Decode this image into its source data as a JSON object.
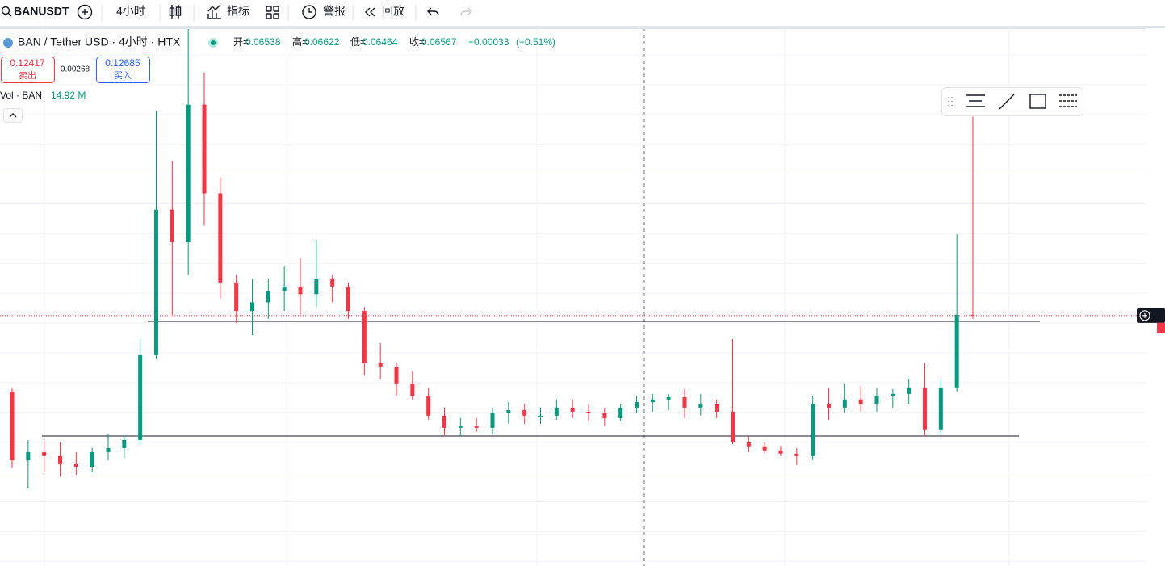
{
  "toolbar": {
    "symbol": "BANUSDT",
    "interval": "4小时",
    "indicators": "指标",
    "alerts": "警报",
    "replay": "回放"
  },
  "legend": {
    "title": "BAN / Tether USD · 4小时 · HTX",
    "open_label": "开=",
    "open": 0.06538,
    "high_label": "高=",
    "high": 0.06622,
    "low_label": "低=",
    "low": 0.06464,
    "close_label": "收=",
    "close": 0.06567,
    "change": "+0.00033",
    "change_pct": "(+0.51%)"
  },
  "trade": {
    "sell_price": 0.12417,
    "sell_label": "卖出",
    "spread": 0.00268,
    "buy_price": 0.12685,
    "buy_label": "买入"
  },
  "volume": {
    "label": "Vol · BAN",
    "value": "14.92 M"
  },
  "chart_data": {
    "type": "candlestick",
    "open": [
      0.0699,
      0.0411,
      0.0438,
      0.0425,
      0.0399,
      0.0391,
      0.0438,
      0.0452,
      0.0481,
      0.0925,
      0.284,
      0.221,
      0.638,
      0.322,
      0.162,
      0.13,
      0.139,
      0.152,
      0.157,
      0.148,
      0.167,
      0.157,
      0.13,
      0.0869,
      0.0842,
      0.0744,
      0.0677,
      0.058,
      0.0528,
      0.0534,
      0.0528,
      0.0591,
      0.0605,
      0.058,
      0.058,
      0.0617,
      0.0598,
      0.0591,
      0.0569,
      0.0617,
      0.0644,
      0.0657,
      0.0669,
      0.0617,
      0.0636,
      0.0598,
      0.0472,
      0.0458,
      0.0444,
      0.0433,
      0.0425,
      0.0636,
      0.0617,
      0.0657,
      0.0636,
      0.0677,
      0.0686,
      0.0721,
      0.0522,
      0.0721,
      0.1263
    ],
    "high": [
      0.0721,
      0.0481,
      0.0481,
      0.0472,
      0.0438,
      0.0452,
      0.0502,
      0.0496,
      0.1048,
      0.607,
      0.412,
      1.15,
      0.818,
      0.364,
      0.172,
      0.167,
      0.167,
      0.183,
      0.195,
      0.225,
      0.172,
      0.162,
      0.134,
      0.1015,
      0.0869,
      0.0817,
      0.0721,
      0.0617,
      0.0569,
      0.0569,
      0.0617,
      0.0644,
      0.0636,
      0.0617,
      0.0657,
      0.0657,
      0.0636,
      0.0617,
      0.0636,
      0.0677,
      0.0686,
      0.0686,
      0.0712,
      0.0686,
      0.0657,
      0.1048,
      0.0496,
      0.0472,
      0.046,
      0.0452,
      0.0677,
      0.0721,
      0.0744,
      0.073,
      0.0721,
      0.0712,
      0.0767,
      0.0869,
      0.0767,
      0.235,
      0.581
    ],
    "low": [
      0.0387,
      0.0331,
      0.0375,
      0.0363,
      0.0368,
      0.0375,
      0.0411,
      0.0417,
      0.0466,
      0.0897,
      0.1263,
      0.172,
      0.251,
      0.143,
      0.1187,
      0.108,
      0.1224,
      0.13,
      0.1263,
      0.134,
      0.139,
      0.1224,
      0.0792,
      0.0767,
      0.0677,
      0.0657,
      0.0562,
      0.0496,
      0.0496,
      0.0512,
      0.0502,
      0.0545,
      0.0545,
      0.0545,
      0.0562,
      0.0569,
      0.0555,
      0.0534,
      0.0555,
      0.0591,
      0.0598,
      0.0605,
      0.0569,
      0.058,
      0.0569,
      0.0466,
      0.0438,
      0.0433,
      0.0425,
      0.0397,
      0.0411,
      0.0562,
      0.0591,
      0.0598,
      0.0598,
      0.0617,
      0.0636,
      0.0496,
      0.0502,
      0.0699,
      0.1224
    ],
    "close": [
      0.0411,
      0.0438,
      0.0425,
      0.0399,
      0.0391,
      0.0438,
      0.0452,
      0.0481,
      0.0925,
      0.284,
      0.221,
      0.638,
      0.322,
      0.162,
      0.13,
      0.139,
      0.152,
      0.157,
      0.148,
      0.167,
      0.157,
      0.13,
      0.0869,
      0.0842,
      0.0744,
      0.0677,
      0.058,
      0.0528,
      0.0534,
      0.0528,
      0.0591,
      0.0605,
      0.058,
      0.058,
      0.0617,
      0.0598,
      0.0591,
      0.0569,
      0.0617,
      0.0644,
      0.0657,
      0.0669,
      0.0617,
      0.0636,
      0.0598,
      0.0472,
      0.0458,
      0.0444,
      0.0433,
      0.0425,
      0.0636,
      0.0617,
      0.0657,
      0.0636,
      0.0677,
      0.0686,
      0.0721,
      0.0522,
      0.0721,
      0.1263,
      0.1255
    ],
    "ylim": [
      0.0182,
      1.15
    ],
    "log_scale": true,
    "up_color": "#089981",
    "down_color": "#f23645",
    "horizontal_lines": [
      0.12,
      0.0496
    ],
    "last_price": 0.1255
  }
}
